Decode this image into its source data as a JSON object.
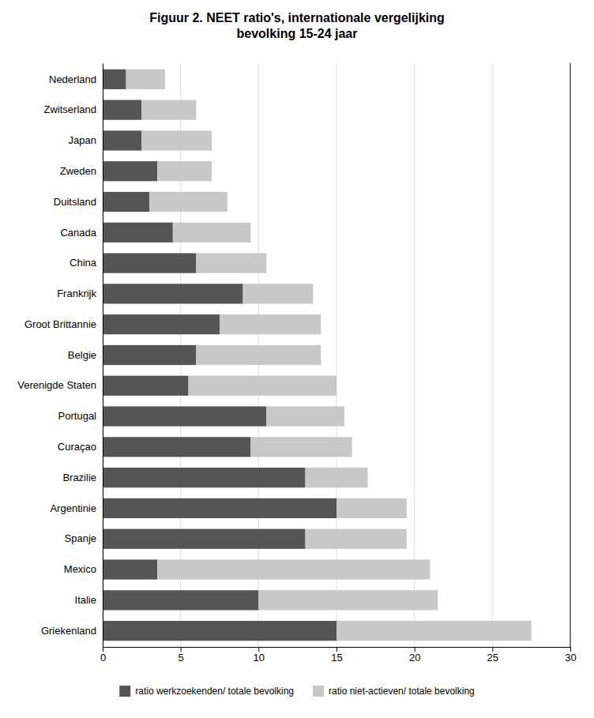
{
  "chart_data": {
    "type": "bar",
    "orientation": "horizontal",
    "stacked": true,
    "title": "Figuur 2. NEET ratio's, internationale vergelijking\nbevolking 15-24 jaar",
    "categories": [
      "Nederland",
      "Zwitserland",
      "Japan",
      "Zweden",
      "Duitsland",
      "Canada",
      "China",
      "Frankrijk",
      "Groot Brittannie",
      "Belgie",
      "Verenigde Staten",
      "Portugal",
      "Curaçao",
      "Brazilie",
      "Argentinie",
      "Spanje",
      "Mexico",
      "Italie",
      "Griekenland"
    ],
    "series": [
      {
        "name": "ratio werkzoekenden/ totale bevolking",
        "color": "#555555",
        "values": [
          1.5,
          2.5,
          2.5,
          3.5,
          3.0,
          4.5,
          6.0,
          9.0,
          7.5,
          6.0,
          5.5,
          10.5,
          9.5,
          13.0,
          15.0,
          13.0,
          3.5,
          10.0,
          15.0
        ]
      },
      {
        "name": "ratio niet-actieven/ totale bevolking",
        "color": "#c8c8c8",
        "values": [
          2.5,
          3.5,
          4.5,
          3.5,
          5.0,
          5.0,
          4.5,
          4.5,
          6.5,
          8.0,
          9.5,
          5.0,
          6.5,
          4.0,
          4.5,
          6.5,
          17.5,
          11.5,
          12.5
        ]
      }
    ],
    "xlim": [
      0,
      30
    ],
    "xticks": [
      0,
      5,
      10,
      15,
      20,
      25,
      30
    ],
    "grid": true,
    "legend": "bottom"
  }
}
